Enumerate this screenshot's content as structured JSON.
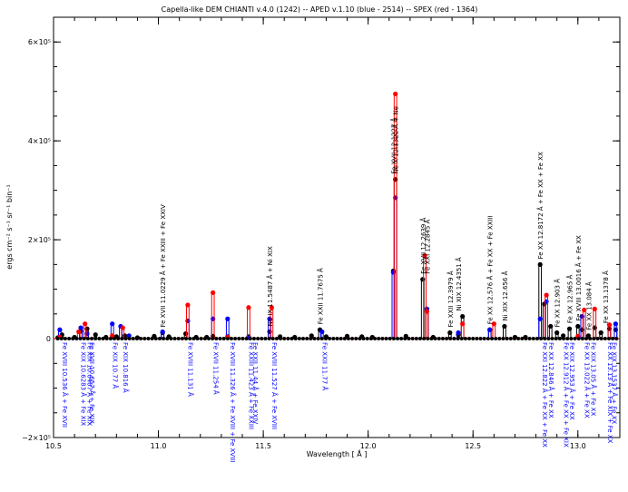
{
  "chart_data": {
    "type": "line",
    "title": "Capella-like DEM  CHIANTI v.4.0 (1242) -- APED v.1.10 (blue - 2514) -- SPEX (red - 1364)",
    "xlabel": "Wavelength [ Å ]",
    "ylabel": "ergs cm⁻² s⁻¹ sr⁻¹ bin⁻¹",
    "xlim": [
      10.5,
      13.2
    ],
    "ylim": [
      -200000,
      650000
    ],
    "x_ticks": [
      10.5,
      11.0,
      11.5,
      12.0,
      12.5,
      13.0
    ],
    "x_tick_labels": [
      "10.5",
      "11.0",
      "11.5",
      "12.0",
      "12.5",
      "13.0"
    ],
    "y_ticks": [
      -200000,
      0,
      200000,
      400000,
      600000
    ],
    "y_tick_labels": [
      "−2×10⁵",
      "0",
      "2×10⁵",
      "4×10⁵",
      "6×10⁵"
    ],
    "grid": false,
    "series": [
      {
        "name": "CHIANTI",
        "color": "#000000",
        "points": [
          [
            10.52,
            2000
          ],
          [
            10.54,
            8000
          ],
          [
            10.6,
            3000
          ],
          [
            10.63,
            15000
          ],
          [
            10.66,
            20000
          ],
          [
            10.7,
            8000
          ],
          [
            10.75,
            3000
          ],
          [
            10.8,
            4000
          ],
          [
            10.84,
            6000
          ],
          [
            10.9,
            2000
          ],
          [
            10.98,
            5000
          ],
          [
            11.02,
            12000
          ],
          [
            11.05,
            4000
          ],
          [
            11.13,
            10000
          ],
          [
            11.18,
            3000
          ],
          [
            11.23,
            3000
          ],
          [
            11.26,
            5000
          ],
          [
            11.33,
            4000
          ],
          [
            11.43,
            4000
          ],
          [
            11.53,
            14000
          ],
          [
            11.58,
            4000
          ],
          [
            11.65,
            3000
          ],
          [
            11.73,
            6000
          ],
          [
            11.77,
            18000
          ],
          [
            11.8,
            4000
          ],
          [
            11.9,
            5000
          ],
          [
            11.97,
            4000
          ],
          [
            12.02,
            3000
          ],
          [
            12.12,
            137000
          ],
          [
            12.13,
            322000
          ],
          [
            12.18,
            5000
          ],
          [
            12.26,
            120000
          ],
          [
            12.28,
            60000
          ],
          [
            12.31,
            3000
          ],
          [
            12.39,
            12000
          ],
          [
            12.43,
            8000
          ],
          [
            12.45,
            45000
          ],
          [
            12.58,
            18000
          ],
          [
            12.65,
            25000
          ],
          [
            12.7,
            3000
          ],
          [
            12.75,
            3000
          ],
          [
            12.82,
            150000
          ],
          [
            12.84,
            70000
          ],
          [
            12.87,
            25000
          ],
          [
            12.9,
            12000
          ],
          [
            12.93,
            6000
          ],
          [
            12.96,
            20000
          ],
          [
            13.0,
            25000
          ],
          [
            13.02,
            18000
          ],
          [
            13.05,
            6000
          ],
          [
            13.08,
            22000
          ],
          [
            13.11,
            12000
          ],
          [
            13.15,
            20000
          ],
          [
            13.18,
            18000
          ]
        ]
      },
      {
        "name": "APED",
        "color": "#0000ff",
        "points": [
          [
            10.53,
            18000
          ],
          [
            10.63,
            22000
          ],
          [
            10.66,
            10000
          ],
          [
            10.78,
            30000
          ],
          [
            10.82,
            25000
          ],
          [
            10.86,
            6000
          ],
          [
            11.02,
            14000
          ],
          [
            11.14,
            36000
          ],
          [
            11.26,
            40000
          ],
          [
            11.33,
            40000
          ],
          [
            11.43,
            2000
          ],
          [
            11.53,
            40000
          ],
          [
            11.78,
            14000
          ],
          [
            12.12,
            134000
          ],
          [
            12.13,
            285000
          ],
          [
            12.28,
            60000
          ],
          [
            12.43,
            12000
          ],
          [
            12.58,
            18000
          ],
          [
            12.82,
            40000
          ],
          [
            12.85,
            75000
          ],
          [
            13.02,
            45000
          ],
          [
            13.15,
            28000
          ],
          [
            13.18,
            30000
          ]
        ]
      },
      {
        "name": "SPEX",
        "color": "#ff0000",
        "points": [
          [
            10.53,
            3000
          ],
          [
            10.62,
            14000
          ],
          [
            10.65,
            30000
          ],
          [
            10.78,
            6000
          ],
          [
            10.83,
            22000
          ],
          [
            11.14,
            68000
          ],
          [
            11.26,
            93000
          ],
          [
            11.33,
            3000
          ],
          [
            11.43,
            63000
          ],
          [
            11.54,
            63000
          ],
          [
            12.13,
            495000
          ],
          [
            12.27,
            168000
          ],
          [
            12.28,
            55000
          ],
          [
            12.45,
            30000
          ],
          [
            12.6,
            30000
          ],
          [
            12.85,
            88000
          ],
          [
            13.0,
            5000
          ],
          [
            13.03,
            58000
          ],
          [
            13.08,
            60000
          ],
          [
            13.15,
            28000
          ]
        ]
      }
    ],
    "annotations_top": [
      {
        "x": 11.02,
        "text": "Fe XVII 11.0229 Å + Fe XXIII + Fe XXIV"
      },
      {
        "x": 11.53,
        "text": "Ne IX 11.5487 Å + Ni XIX"
      },
      {
        "x": 11.77,
        "text": "Fe XXII 11.7675 Å"
      },
      {
        "x": 12.12,
        "text": "Fe XVII 12.1227 Å"
      },
      {
        "x": 12.13,
        "text": "Ne X 12.1321 Å + Ne"
      },
      {
        "x": 12.26,
        "text": "Fe XVII 12.2639 Å"
      },
      {
        "x": 12.28,
        "text": "Fe XXI 12.2845 Å"
      },
      {
        "x": 12.39,
        "text": "Fe XXII 12.3979 Å"
      },
      {
        "x": 12.43,
        "text": "Ni XIX 12.4351 Å"
      },
      {
        "x": 12.58,
        "text": "Fe XX 12.576 Å + Fe XX + Fe XXIII"
      },
      {
        "x": 12.65,
        "text": "Ni XIX 12.656 Å"
      },
      {
        "x": 12.82,
        "text": "Fe XX 12.8172 Å + Fe XX + Fe XX"
      },
      {
        "x": 12.9,
        "text": "Fe XX 12.903 Å"
      },
      {
        "x": 12.96,
        "text": "Fe XX 12.965 Å"
      },
      {
        "x": 13.0,
        "text": "Fe XVIII 13.0016 Å + Fe XX"
      },
      {
        "x": 13.05,
        "text": "Fe XX 13.084 Å"
      },
      {
        "x": 13.13,
        "text": "Fe XX 13.1378 Å"
      }
    ],
    "annotations_bottom": [
      {
        "x": 10.53,
        "text": "Fe XVIII 10.536 Å + Fe XVII"
      },
      {
        "x": 10.62,
        "text": "Fe XIX 10.6283 Å + Fe XIX"
      },
      {
        "x": 10.65,
        "text": "Fe XIX 10.6487 Å + Fe XIX"
      },
      {
        "x": 10.66,
        "text": "Fe XVII 10.657 Å + Fe XIX"
      },
      {
        "x": 10.77,
        "text": "Fe XIX 10.77 Å"
      },
      {
        "x": 10.82,
        "text": "Fe XIX 10.816 Å"
      },
      {
        "x": 11.13,
        "text": "Fe XVIII 11.131 Å"
      },
      {
        "x": 11.25,
        "text": "Fe XVII 11.254 Å"
      },
      {
        "x": 11.33,
        "text": "Fe XVIII 11.326 Å + Fe XVIII + Fe XVIII"
      },
      {
        "x": 11.42,
        "text": "Fe XXIII 11.423 Å + Fe XXIII"
      },
      {
        "x": 11.44,
        "text": "Fe XXII 11.44 Å + Fe XXIV"
      },
      {
        "x": 11.53,
        "text": "Fe XVIII 11.527 Å + Fe XVIII"
      },
      {
        "x": 11.77,
        "text": "Fe XXII 11.77 Å"
      },
      {
        "x": 12.82,
        "text": "Fe XXI 12.822 Å + Fe XX + Fe XX"
      },
      {
        "x": 12.85,
        "text": "Fe XX 12.846 Å + Fe XX"
      },
      {
        "x": 12.92,
        "text": "Fe XX 12.912 Å + Fe XX + Fe XIX"
      },
      {
        "x": 12.95,
        "text": "Fe XIX 12.953 Å + Fe XX"
      },
      {
        "x": 13.02,
        "text": "Fe XX 13.022 Å + Fe XX"
      },
      {
        "x": 13.05,
        "text": "Fe XIX 13.05 Å + Fe XX"
      },
      {
        "x": 13.13,
        "text": "Fe XX 13.13 Å + Fe XIX + Fe XX"
      },
      {
        "x": 13.15,
        "text": "Fe XIX 13.1537 Å + Fe XX"
      }
    ]
  }
}
